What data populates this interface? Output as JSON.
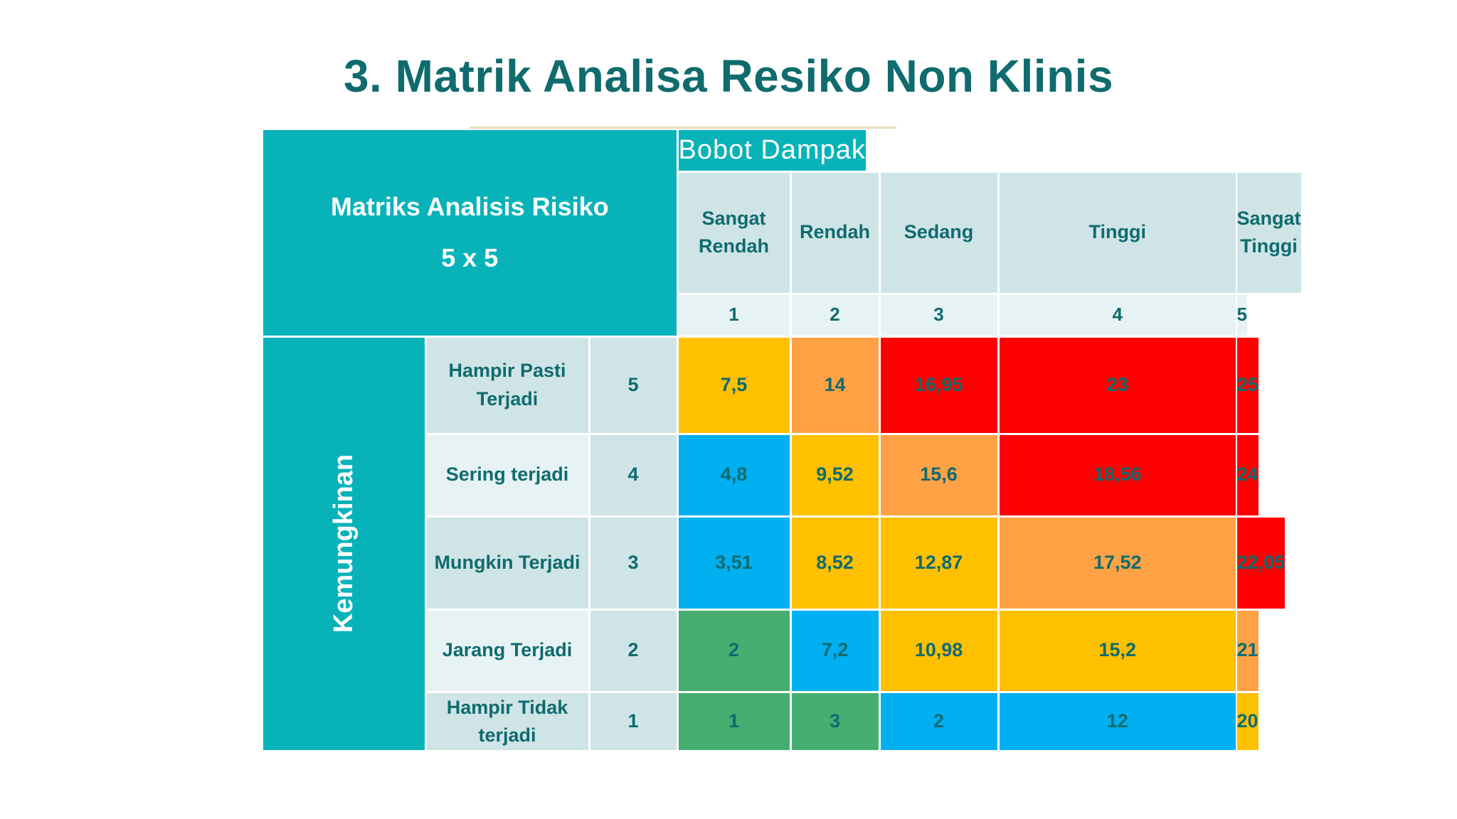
{
  "title": "3. Matrik Analisa Resiko Non Klinis",
  "corner": {
    "line1": "Matriks Analisis Risiko",
    "line2": "5 x 5"
  },
  "impact": {
    "title": "Bobot Dampak",
    "levels": [
      {
        "label_1": "Sangat",
        "label_2": "Rendah",
        "num": "1"
      },
      {
        "label_1": "Rendah",
        "label_2": "",
        "num": "2"
      },
      {
        "label_1": "Sedang",
        "label_2": "",
        "num": "3"
      },
      {
        "label_1": "Tinggi",
        "label_2": "",
        "num": "4"
      },
      {
        "label_1": "Sangat",
        "label_2": "Tinggi",
        "num": "5"
      }
    ]
  },
  "likelihood": {
    "title": "Kemungkinan",
    "rows": [
      {
        "label_1": "Hampir Pasti",
        "label_2": "Terjadi",
        "num": "5",
        "scores": [
          "7,5",
          "14",
          "16,95",
          "23",
          "25"
        ]
      },
      {
        "label_1": "Sering terjadi",
        "label_2": "",
        "num": "4",
        "scores": [
          "4,8",
          "9,52",
          "15,6",
          "18,56",
          "24"
        ]
      },
      {
        "label_1": "Mungkin Terjadi",
        "label_2": "",
        "num": "3",
        "scores": [
          "3,51",
          "8,52",
          "12,87",
          "17,52",
          "22,05"
        ]
      },
      {
        "label_1": "Jarang Terjadi",
        "label_2": "",
        "num": "2",
        "scores": [
          "2",
          "7,2",
          "10,98",
          "15,2",
          "21"
        ]
      },
      {
        "label_1": "Hampir Tidak",
        "label_2": "terjadi",
        "num": "1",
        "scores": [
          "1",
          "3",
          "2",
          "12",
          "20"
        ]
      }
    ]
  },
  "colors": {
    "red": "#ff0000",
    "orange": "#ffa245",
    "yellow": "#ffc000",
    "blue": "#00b0f0",
    "green": "#45ae70",
    "teal": "#07b3b9",
    "text_teal": "#0f6b6e"
  },
  "cell_colors": [
    [
      "yellow",
      "orange",
      "red",
      "red",
      "red"
    ],
    [
      "blue",
      "yellow",
      "orange",
      "red",
      "red"
    ],
    [
      "blue",
      "yellow",
      "yellow",
      "orange",
      "red"
    ],
    [
      "green",
      "blue",
      "yellow",
      "yellow",
      "orange"
    ],
    [
      "green",
      "green",
      "blue",
      "blue",
      "yellow"
    ]
  ]
}
